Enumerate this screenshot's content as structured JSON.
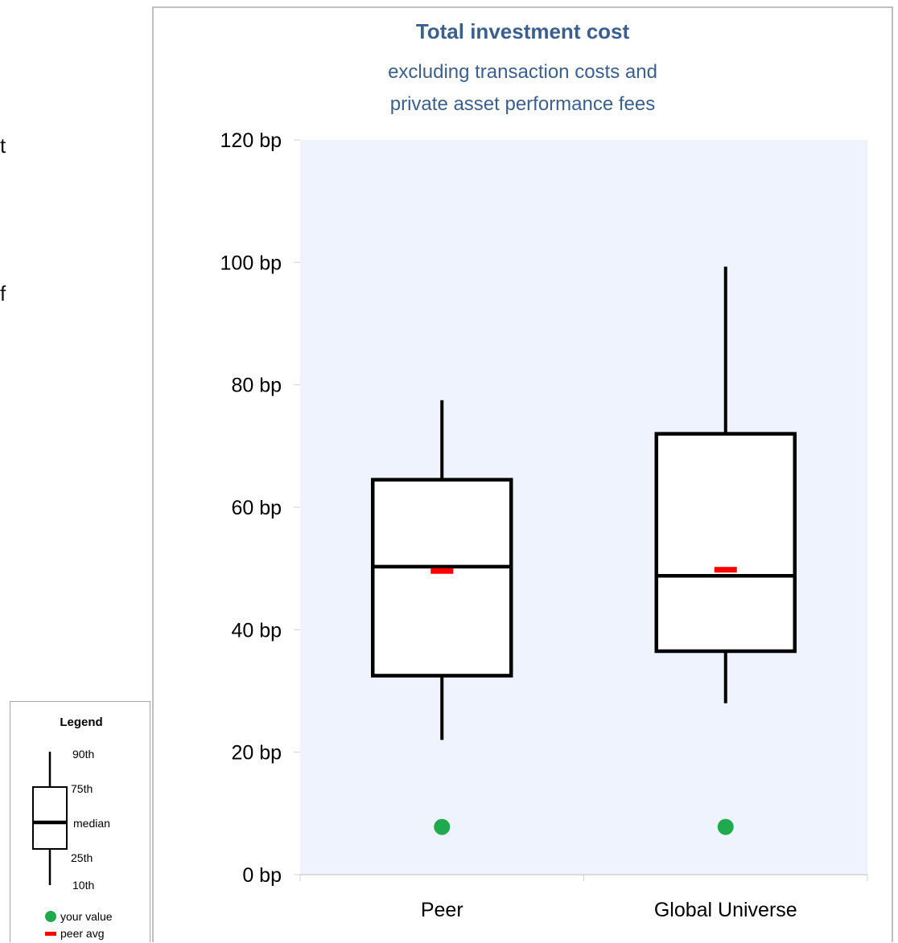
{
  "left_fragments": [
    "t",
    "f"
  ],
  "chart_data": {
    "type": "boxplot",
    "title": "Total investment cost",
    "subtitle": [
      "excluding transaction costs and",
      "private asset performance fees"
    ],
    "y_unit": "bp",
    "ylim": [
      0,
      120
    ],
    "y_ticks": [
      "0 bp",
      "20 bp",
      "40 bp",
      "60 bp",
      "80 bp",
      "100 bp",
      "120 bp"
    ],
    "categories": [
      "Peer",
      "Global Universe"
    ],
    "boxes": [
      {
        "p10": 22,
        "p25": 32.5,
        "median": 50.3,
        "p75": 64.5,
        "p90": 77.5,
        "peer_avg": 49.6,
        "your_value": 7.8
      },
      {
        "p10": 28,
        "p25": 36.5,
        "median": 48.8,
        "p75": 72,
        "p90": 99.3,
        "peer_avg": 49.8,
        "your_value": 7.8
      }
    ],
    "colors": {
      "plot_bg": "#eef3fd",
      "your_value": "#1faa4e",
      "peer_avg": "#ff0000",
      "box": "#000000",
      "title": "#3b5f8e"
    },
    "grid": false
  },
  "legend": {
    "title": "Legend",
    "labels": {
      "p90": "90th",
      "p75": "75th",
      "median": "median",
      "p25": "25th",
      "p10": "10th"
    },
    "your_value": "your value",
    "peer_avg": "peer avg"
  }
}
